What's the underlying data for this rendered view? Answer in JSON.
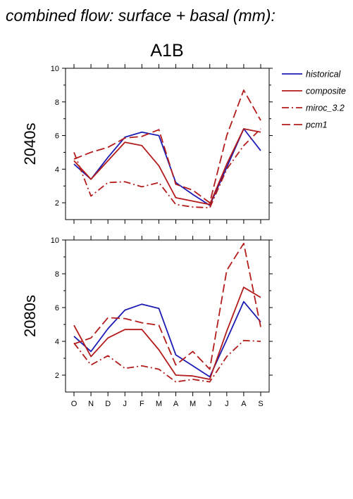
{
  "title": "combined flow: surface + basal (mm):",
  "scenario": "A1B",
  "legend": [
    {
      "key": "historical",
      "label": "historical"
    },
    {
      "key": "composite",
      "label": "composite"
    },
    {
      "key": "miroc_3.2",
      "label": "miroc_3.2"
    },
    {
      "key": "pcm1",
      "label": "pcm1"
    }
  ],
  "styles": {
    "historical": {
      "color": "#1c1cb4",
      "dash": "solid"
    },
    "composite": {
      "color": "#b41c1c",
      "dash": "solid"
    },
    "miroc_3.2": {
      "color": "#b41c1c",
      "dash": "dashdot"
    },
    "pcm1": {
      "color": "#b41c1c",
      "dash": "dashed"
    }
  },
  "chart_data": [
    {
      "type": "line",
      "panel_label": "2040s",
      "categories": [
        "O",
        "N",
        "D",
        "J",
        "F",
        "M",
        "A",
        "M",
        "J",
        "J",
        "A",
        "S"
      ],
      "ylim": [
        1,
        10
      ],
      "yticks": [
        2,
        4,
        6,
        8,
        10
      ],
      "series": [
        {
          "name": "historical",
          "values": [
            4.3,
            3.4,
            4.7,
            5.9,
            6.2,
            6.0,
            3.2,
            2.5,
            1.85,
            4.1,
            6.4,
            5.1
          ]
        },
        {
          "name": "composite",
          "values": [
            4.5,
            3.4,
            4.5,
            5.6,
            5.4,
            4.2,
            2.3,
            2.1,
            1.9,
            4.3,
            6.4,
            6.2
          ]
        },
        {
          "name": "miroc_3.2",
          "values": [
            5.0,
            2.4,
            3.2,
            3.25,
            2.95,
            3.2,
            1.9,
            1.75,
            1.7,
            4.0,
            5.4,
            6.4
          ]
        },
        {
          "name": "pcm1",
          "values": [
            4.6,
            5.0,
            5.3,
            5.85,
            5.95,
            6.35,
            3.1,
            2.75,
            2.0,
            6.0,
            8.7,
            6.9
          ]
        }
      ]
    },
    {
      "type": "line",
      "panel_label": "2080s",
      "categories": [
        "O",
        "N",
        "D",
        "J",
        "F",
        "M",
        "A",
        "M",
        "J",
        "J",
        "A",
        "S"
      ],
      "ylim": [
        1,
        10
      ],
      "yticks": [
        2,
        4,
        6,
        8,
        10
      ],
      "series": [
        {
          "name": "historical",
          "values": [
            4.3,
            3.4,
            4.75,
            5.85,
            6.2,
            5.95,
            3.2,
            2.55,
            1.9,
            4.1,
            6.35,
            5.15
          ]
        },
        {
          "name": "composite",
          "values": [
            4.95,
            3.1,
            4.2,
            4.7,
            4.7,
            3.5,
            2.0,
            1.95,
            1.75,
            4.6,
            7.2,
            6.6
          ]
        },
        {
          "name": "miroc_3.2",
          "values": [
            3.9,
            2.6,
            3.15,
            2.4,
            2.55,
            2.35,
            1.6,
            1.75,
            1.6,
            3.1,
            4.05,
            4.0
          ]
        },
        {
          "name": "pcm1",
          "values": [
            3.85,
            4.2,
            5.4,
            5.35,
            5.1,
            4.95,
            2.6,
            3.4,
            2.35,
            8.2,
            9.8,
            4.85
          ]
        }
      ]
    }
  ]
}
